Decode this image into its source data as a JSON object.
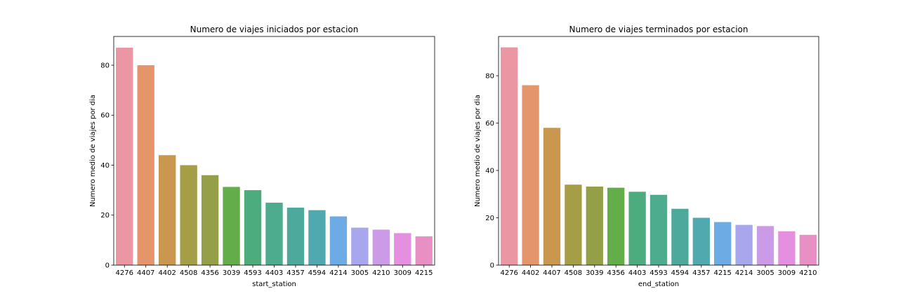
{
  "chart_data": [
    {
      "type": "bar",
      "title": "Numero de viajes iniciados por estacion",
      "xlabel": "start_station",
      "ylabel": "Numero medio de viajes por dia",
      "categories": [
        "4276",
        "4407",
        "4402",
        "4508",
        "4356",
        "3039",
        "4593",
        "4403",
        "4357",
        "4594",
        "4214",
        "3005",
        "4210",
        "3009",
        "4215"
      ],
      "values": [
        87,
        80,
        44,
        40,
        36,
        31.3,
        30,
        25,
        23,
        22,
        19.5,
        15,
        14.2,
        12.8,
        11.5
      ],
      "colors": [
        "#ea96a3",
        "#e5956c",
        "#c9974d",
        "#a69d47",
        "#949f48",
        "#63ad4a",
        "#4dac7d",
        "#4dab8e",
        "#4ea99d",
        "#51a9b0",
        "#6cabe4",
        "#a8a6ec",
        "#cb9be8",
        "#e48fe0",
        "#e890c4"
      ],
      "ylim": [
        0,
        91.5
      ],
      "yticks": [
        0,
        20,
        40,
        60,
        80
      ],
      "grid": false,
      "legend": "none"
    },
    {
      "type": "bar",
      "title": "Numero de viajes terminados por estacion",
      "xlabel": "end_station",
      "ylabel": "Numero medio de viajes por dia",
      "categories": [
        "4276",
        "4402",
        "4407",
        "4508",
        "3039",
        "4356",
        "4403",
        "4593",
        "4594",
        "4357",
        "4215",
        "4214",
        "3005",
        "3009",
        "4210"
      ],
      "values": [
        92,
        76,
        58,
        34,
        33.2,
        32.7,
        31,
        29.7,
        23.8,
        20,
        18.2,
        17,
        16.5,
        14.3,
        12.8
      ],
      "colors": [
        "#ea96a3",
        "#e5956c",
        "#c9974d",
        "#a69d47",
        "#949f48",
        "#63ad4a",
        "#4dac7d",
        "#4dab8e",
        "#4ea99d",
        "#51a9b0",
        "#6cabe4",
        "#a8a6ec",
        "#cb9be8",
        "#e48fe0",
        "#e890c4"
      ],
      "ylim": [
        0,
        96.6
      ],
      "yticks": [
        0,
        20,
        40,
        60,
        80
      ],
      "grid": false,
      "legend": "none"
    }
  ]
}
